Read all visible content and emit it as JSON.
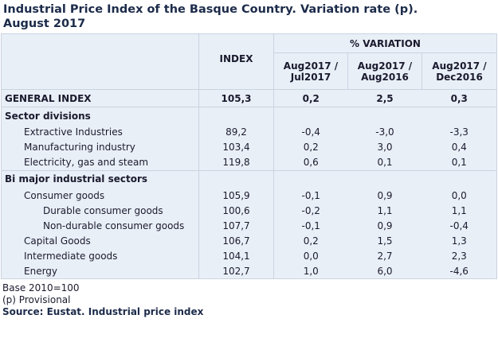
{
  "title": "Industrial Price Index of the Basque Country. Variation rate (p).\nAugust 2017",
  "header": {
    "index": "INDEX",
    "variation": "% VARIATION",
    "columns": [
      "Aug2017 /\nJul2017",
      "Aug2017 /\nAug2016",
      "Aug2017 /\nDec2016"
    ]
  },
  "general": {
    "label": "GENERAL INDEX",
    "values": [
      "105,3",
      "0,2",
      "2,5",
      "0,3"
    ]
  },
  "sections": [
    {
      "heading": "Sector divisions",
      "rows": [
        {
          "label": "Extractive Industries",
          "values": [
            "89,2",
            "-0,4",
            "-3,0",
            "-3,3"
          ]
        },
        {
          "label": "Manufacturing industry",
          "values": [
            "103,4",
            "0,2",
            "3,0",
            "0,4"
          ]
        },
        {
          "label": "Electricity, gas and steam",
          "values": [
            "119,8",
            "0,6",
            "0,1",
            "0,1"
          ]
        }
      ]
    },
    {
      "heading": "Bi major industrial sectors",
      "rows": [
        {
          "label": "Consumer goods",
          "values": [
            "105,9",
            "-0,1",
            "0,9",
            "0,0"
          ],
          "children": [
            {
              "label": "Durable consumer goods",
              "values": [
                "100,6",
                "-0,2",
                "1,1",
                "1,1"
              ]
            },
            {
              "label": "Non-durable consumer goods",
              "values": [
                "107,7",
                "-0,1",
                "0,9",
                "-0,4"
              ]
            }
          ]
        },
        {
          "label": "Capital Goods",
          "values": [
            "106,7",
            "0,2",
            "1,5",
            "1,3"
          ]
        },
        {
          "label": "Intermediate goods",
          "values": [
            "104,1",
            "0,0",
            "2,7",
            "2,3"
          ]
        },
        {
          "label": "Energy",
          "values": [
            "102,7",
            "1,0",
            "6,0",
            "-4,6"
          ]
        }
      ]
    }
  ],
  "notes": [
    "Base 2010=100",
    "(p) Provisional"
  ],
  "source": "Source: Eustat. Industrial price index"
}
